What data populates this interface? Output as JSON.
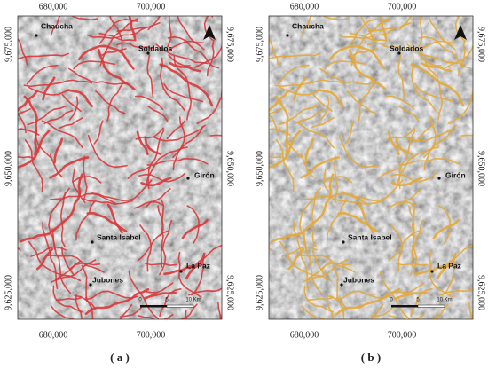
{
  "panels": [
    {
      "caption": "( a )",
      "x_ticks": [
        "680,000",
        "700,000"
      ],
      "y_ticks": [
        "9,675,000",
        "9,650,000",
        "9,625,000"
      ],
      "places": [
        "Chaucha",
        "Soldados",
        "Girón",
        "Santa Isabel",
        "La Paz",
        "Jubones"
      ],
      "scale": [
        "0",
        "5",
        "10 Km"
      ]
    },
    {
      "caption": "( b )",
      "x_ticks": [
        "680,000",
        "700,000"
      ],
      "y_ticks": [
        "9,675,000",
        "9,650,000",
        "9,625,000"
      ],
      "places": [
        "Chaucha",
        "Soldados",
        "Girón",
        "Santa Isabel",
        "La Paz",
        "Jubones"
      ],
      "scale": [
        "0",
        "5",
        "10 Km"
      ]
    }
  ]
}
